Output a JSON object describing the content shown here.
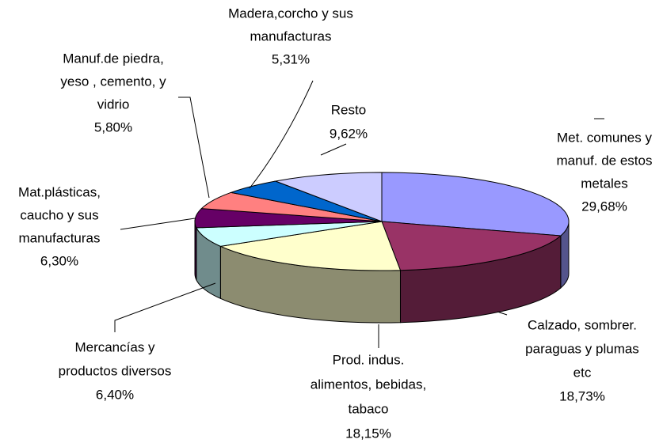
{
  "chart_data": {
    "type": "pie3d",
    "categories": [
      [
        "Met. comunes y",
        "manuf. de estos",
        "metales"
      ],
      [
        "Calzado, sombrer.",
        "paraguas y plumas",
        "etc"
      ],
      [
        "Prod. indus.",
        "alimentos, bebidas,",
        "tabaco"
      ],
      [
        "Mercancías y",
        "productos diversos"
      ],
      [
        "Mat.plásticas,",
        "caucho y sus",
        "manufacturas"
      ],
      [
        "Manuf.de piedra,",
        "yeso , cemento, y",
        "vidrio"
      ],
      [
        "Madera,corcho y sus",
        "manufacturas"
      ],
      [
        "Resto"
      ]
    ],
    "values": [
      29.68,
      18.73,
      18.15,
      6.4,
      6.3,
      5.8,
      5.31,
      9.62
    ],
    "value_labels": [
      "29,68%",
      "18,73%",
      "18,15%",
      "6,40%",
      "6,30%",
      "5,80%",
      "5,31%",
      "9,62%"
    ],
    "colors": [
      "#9999ff",
      "#993366",
      "#ffffcc",
      "#ccffff",
      "#660066",
      "#ff8080",
      "#0066cc",
      "#ccccff"
    ]
  }
}
